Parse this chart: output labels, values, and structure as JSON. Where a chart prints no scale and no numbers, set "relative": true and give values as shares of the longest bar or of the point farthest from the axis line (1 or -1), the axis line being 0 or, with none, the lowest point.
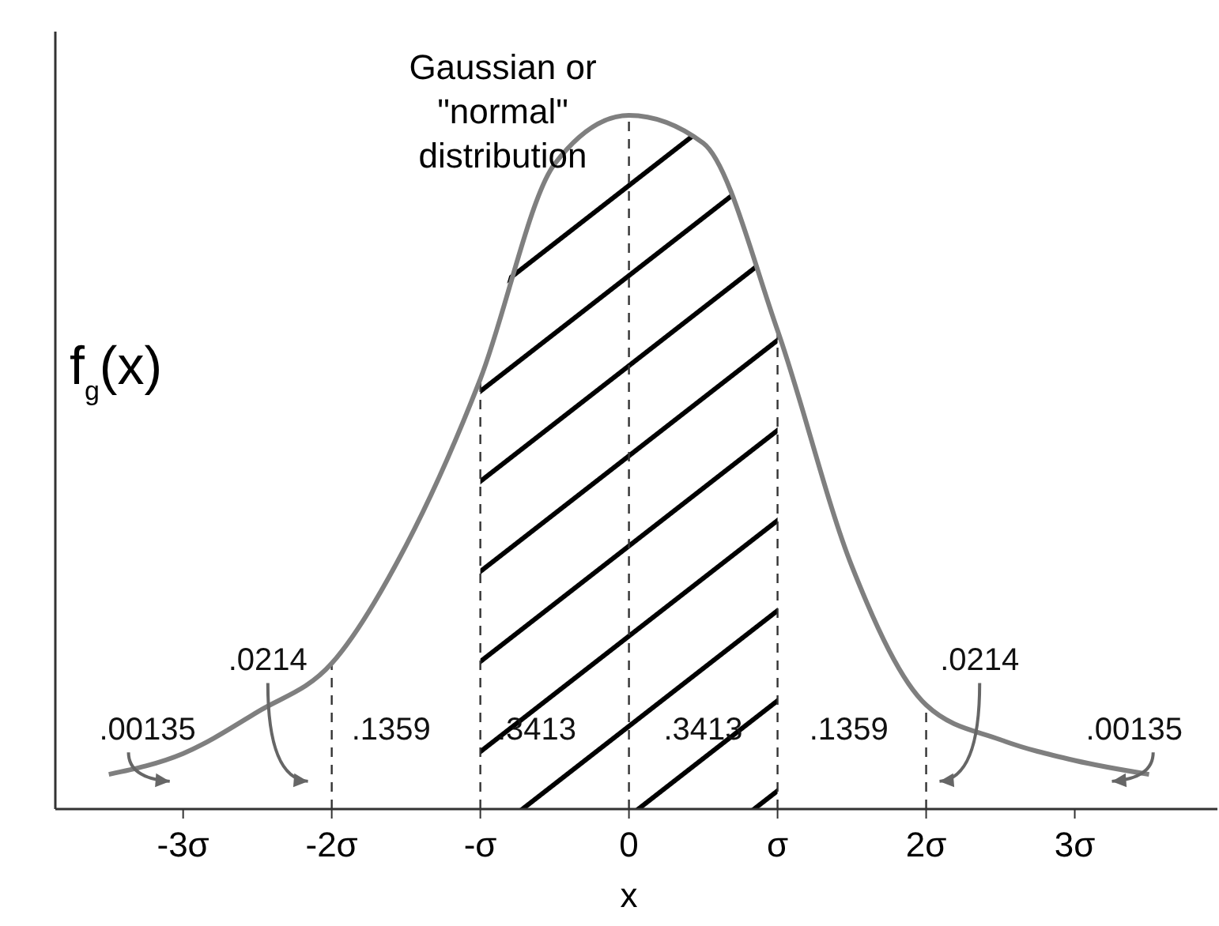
{
  "chart_data": {
    "type": "line",
    "relative": true,
    "xlabel": "x",
    "ylabel": "f$_{g}$(x)",
    "x": [
      -3.5,
      -3,
      -2.5,
      -2,
      -1.5,
      -1,
      -0.5,
      0,
      0.5,
      1,
      1.5,
      2,
      2.5,
      3,
      3.5
    ],
    "series": [
      {
        "color": "#7f7f7f",
        "values": [
          0.05,
          0.08,
          0.14,
          0.21,
          0.38,
          0.62,
          0.93,
          1,
          0.96,
          0.69,
          0.35,
          0.15,
          0.1,
          0.07,
          0.05
        ]
      }
    ],
    "xlim": [
      -3.86,
      3.96
    ],
    "xticks": [
      {
        "value": -3,
        "label": "-3σ"
      },
      {
        "value": -2,
        "label": "-2σ"
      },
      {
        "value": -1,
        "label": "-σ"
      },
      0,
      {
        "value": 1,
        "label": "σ"
      },
      {
        "value": 2,
        "label": "2σ"
      },
      {
        "value": 3,
        "label": "3σ"
      }
    ],
    "ref_lines": [
      {
        "axis": "x",
        "value": -2,
        "line_style": "dashed"
      },
      {
        "axis": "x",
        "value": -1,
        "line_style": "dashed"
      },
      {
        "axis": "x",
        "value": 0,
        "line_style": "dashed"
      },
      {
        "axis": "x",
        "value": 1,
        "line_style": "dashed"
      },
      {
        "axis": "x",
        "value": 2,
        "line_style": "dashed"
      }
    ],
    "bands": [
      {
        "axis": "x",
        "from": -1,
        "to": 1,
        "color": "#000000"
      }
    ],
    "annotations": [
      "Gaussian or \"normal\" distribution",
      ".00135",
      ".0214",
      ".1359",
      ".3413",
      ".3413",
      ".1359",
      ".0214",
      ".00135"
    ],
    "grid": false,
    "marker": "none",
    "line_style": "solid"
  }
}
